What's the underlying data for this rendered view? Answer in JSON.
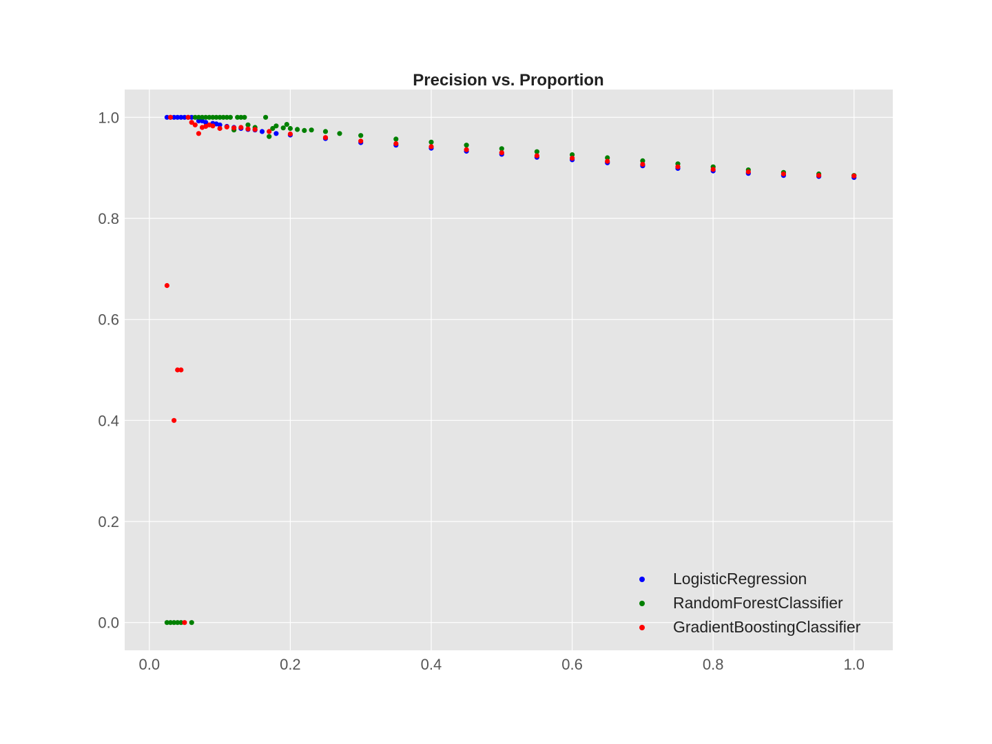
{
  "chart_data": {
    "type": "scatter",
    "title": "Precision vs. Proportion",
    "xlabel": "",
    "ylabel": "",
    "xlim": [
      -0.035,
      1.055
    ],
    "ylim": [
      -0.055,
      1.055
    ],
    "xticks": [
      "0.0",
      "0.2",
      "0.4",
      "0.6",
      "0.8",
      "1.0"
    ],
    "yticks": [
      "0.0",
      "0.2",
      "0.4",
      "0.6",
      "0.8",
      "1.0"
    ],
    "grid": true,
    "legend_position": "lower-right",
    "series": [
      {
        "name": "LogisticRegression",
        "color": "#0000ff",
        "points": [
          [
            0.025,
            1.0
          ],
          [
            0.03,
            1.0
          ],
          [
            0.035,
            1.0
          ],
          [
            0.04,
            1.0
          ],
          [
            0.045,
            1.0
          ],
          [
            0.05,
            1.0
          ],
          [
            0.055,
            1.0
          ],
          [
            0.06,
            1.0
          ],
          [
            0.07,
            0.993
          ],
          [
            0.075,
            0.993
          ],
          [
            0.08,
            0.99
          ],
          [
            0.09,
            0.988
          ],
          [
            0.095,
            0.987
          ],
          [
            0.1,
            0.985
          ],
          [
            0.11,
            0.982
          ],
          [
            0.12,
            0.98
          ],
          [
            0.13,
            0.978
          ],
          [
            0.14,
            0.976
          ],
          [
            0.15,
            0.975
          ],
          [
            0.16,
            0.972
          ],
          [
            0.18,
            0.968
          ],
          [
            0.2,
            0.965
          ],
          [
            0.25,
            0.958
          ],
          [
            0.3,
            0.95
          ],
          [
            0.35,
            0.945
          ],
          [
            0.4,
            0.939
          ],
          [
            0.45,
            0.933
          ],
          [
            0.5,
            0.927
          ],
          [
            0.55,
            0.921
          ],
          [
            0.6,
            0.916
          ],
          [
            0.65,
            0.91
          ],
          [
            0.7,
            0.904
          ],
          [
            0.75,
            0.899
          ],
          [
            0.8,
            0.894
          ],
          [
            0.85,
            0.889
          ],
          [
            0.9,
            0.885
          ],
          [
            0.95,
            0.883
          ],
          [
            1.0,
            0.881
          ]
        ]
      },
      {
        "name": "RandomForestClassifier",
        "color": "#008000",
        "points": [
          [
            0.025,
            0.0
          ],
          [
            0.03,
            0.0
          ],
          [
            0.035,
            0.0
          ],
          [
            0.04,
            0.0
          ],
          [
            0.045,
            0.0
          ],
          [
            0.06,
            0.0
          ],
          [
            0.065,
            1.0
          ],
          [
            0.07,
            1.0
          ],
          [
            0.075,
            1.0
          ],
          [
            0.08,
            1.0
          ],
          [
            0.085,
            1.0
          ],
          [
            0.09,
            1.0
          ],
          [
            0.095,
            1.0
          ],
          [
            0.1,
            1.0
          ],
          [
            0.105,
            1.0
          ],
          [
            0.11,
            1.0
          ],
          [
            0.115,
            1.0
          ],
          [
            0.125,
            1.0
          ],
          [
            0.13,
            1.0
          ],
          [
            0.135,
            1.0
          ],
          [
            0.165,
            1.0
          ],
          [
            0.12,
            0.975
          ],
          [
            0.14,
            0.985
          ],
          [
            0.15,
            0.98
          ],
          [
            0.17,
            0.962
          ],
          [
            0.175,
            0.978
          ],
          [
            0.18,
            0.983
          ],
          [
            0.19,
            0.979
          ],
          [
            0.195,
            0.986
          ],
          [
            0.2,
            0.978
          ],
          [
            0.21,
            0.976
          ],
          [
            0.22,
            0.974
          ],
          [
            0.23,
            0.975
          ],
          [
            0.25,
            0.972
          ],
          [
            0.27,
            0.968
          ],
          [
            0.3,
            0.964
          ],
          [
            0.35,
            0.957
          ],
          [
            0.4,
            0.951
          ],
          [
            0.45,
            0.945
          ],
          [
            0.5,
            0.938
          ],
          [
            0.55,
            0.932
          ],
          [
            0.6,
            0.926
          ],
          [
            0.65,
            0.92
          ],
          [
            0.7,
            0.914
          ],
          [
            0.75,
            0.908
          ],
          [
            0.8,
            0.902
          ],
          [
            0.85,
            0.896
          ],
          [
            0.9,
            0.891
          ],
          [
            0.95,
            0.888
          ],
          [
            1.0,
            0.885
          ]
        ]
      },
      {
        "name": "GradientBoostingClassifier",
        "color": "#ff0000",
        "points": [
          [
            0.025,
            0.667
          ],
          [
            0.03,
            1.0
          ],
          [
            0.035,
            0.4
          ],
          [
            0.04,
            0.5
          ],
          [
            0.045,
            0.5
          ],
          [
            0.05,
            0.0
          ],
          [
            0.055,
            1.0
          ],
          [
            0.06,
            0.99
          ],
          [
            0.065,
            0.985
          ],
          [
            0.07,
            0.968
          ],
          [
            0.075,
            0.98
          ],
          [
            0.08,
            0.982
          ],
          [
            0.085,
            0.985
          ],
          [
            0.09,
            0.983
          ],
          [
            0.1,
            0.978
          ],
          [
            0.11,
            0.981
          ],
          [
            0.12,
            0.979
          ],
          [
            0.13,
            0.98
          ],
          [
            0.14,
            0.977
          ],
          [
            0.15,
            0.976
          ],
          [
            0.17,
            0.972
          ],
          [
            0.2,
            0.967
          ],
          [
            0.25,
            0.96
          ],
          [
            0.3,
            0.953
          ],
          [
            0.35,
            0.948
          ],
          [
            0.4,
            0.942
          ],
          [
            0.45,
            0.936
          ],
          [
            0.5,
            0.93
          ],
          [
            0.55,
            0.924
          ],
          [
            0.6,
            0.919
          ],
          [
            0.65,
            0.913
          ],
          [
            0.7,
            0.907
          ],
          [
            0.75,
            0.902
          ],
          [
            0.8,
            0.897
          ],
          [
            0.85,
            0.892
          ],
          [
            0.9,
            0.888
          ],
          [
            0.95,
            0.885
          ],
          [
            1.0,
            0.884
          ]
        ]
      }
    ]
  }
}
